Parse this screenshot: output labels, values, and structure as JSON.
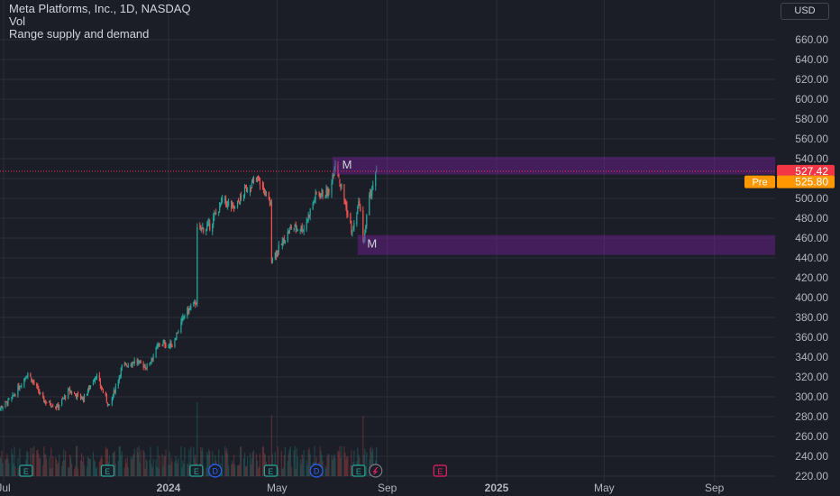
{
  "legend": {
    "symbol": "Meta Platforms, Inc., 1D, NASDAQ",
    "volume": "Vol",
    "indicator": "Range supply and demand"
  },
  "currency_button": "USD",
  "colors": {
    "background": "#1b1e27",
    "grid": "#2a2e39",
    "text": "#b2b5be",
    "up": "#26a69a",
    "down": "#ef5350",
    "zone": "#7b1fa2",
    "last_price_bg": "#f23645",
    "pre_price_bg": "#ff9800"
  },
  "chart_data": {
    "type": "candlestick",
    "y_axis": {
      "min": 220,
      "max": 660,
      "step": 20,
      "ticks": [
        "220.00",
        "240.00",
        "260.00",
        "280.00",
        "300.00",
        "320.00",
        "340.00",
        "360.00",
        "380.00",
        "400.00",
        "420.00",
        "440.00",
        "460.00",
        "480.00",
        "500.00",
        "520.00",
        "540.00",
        "560.00",
        "580.00",
        "600.00",
        "620.00",
        "640.00",
        "660.00"
      ]
    },
    "x_axis": {
      "labels": [
        {
          "text": "Jul",
          "date": "2023-07-01",
          "bold": false
        },
        {
          "text": "2024",
          "date": "2024-01-01",
          "bold": true
        },
        {
          "text": "May",
          "date": "2024-05-01",
          "bold": false
        },
        {
          "text": "Sep",
          "date": "2024-09-01",
          "bold": false
        },
        {
          "text": "2025",
          "date": "2025-01-01",
          "bold": true
        },
        {
          "text": "May",
          "date": "2025-05-01",
          "bold": false
        },
        {
          "text": "Sep",
          "date": "2025-09-01",
          "bold": false
        }
      ]
    },
    "price_path": [
      {
        "date": "2023-06-20",
        "close": 284
      },
      {
        "date": "2023-07-10",
        "close": 298
      },
      {
        "date": "2023-07-28",
        "close": 324
      },
      {
        "date": "2023-08-15",
        "close": 296
      },
      {
        "date": "2023-08-30",
        "close": 290
      },
      {
        "date": "2023-09-12",
        "close": 306
      },
      {
        "date": "2023-09-28",
        "close": 298
      },
      {
        "date": "2023-10-12",
        "close": 322
      },
      {
        "date": "2023-10-27",
        "close": 290
      },
      {
        "date": "2023-11-10",
        "close": 330
      },
      {
        "date": "2023-11-24",
        "close": 336
      },
      {
        "date": "2023-12-08",
        "close": 330
      },
      {
        "date": "2023-12-22",
        "close": 354
      },
      {
        "date": "2024-01-05",
        "close": 352
      },
      {
        "date": "2024-01-19",
        "close": 383
      },
      {
        "date": "2024-02-01",
        "close": 396
      },
      {
        "date": "2024-02-02",
        "close": 468
      },
      {
        "date": "2024-02-16",
        "close": 472
      },
      {
        "date": "2024-03-01",
        "close": 498
      },
      {
        "date": "2024-03-15",
        "close": 490
      },
      {
        "date": "2024-03-28",
        "close": 510
      },
      {
        "date": "2024-04-10",
        "close": 520
      },
      {
        "date": "2024-04-24",
        "close": 493
      },
      {
        "date": "2024-04-25",
        "close": 440
      },
      {
        "date": "2024-05-03",
        "close": 449
      },
      {
        "date": "2024-05-17",
        "close": 471
      },
      {
        "date": "2024-05-31",
        "close": 470
      },
      {
        "date": "2024-06-14",
        "close": 505
      },
      {
        "date": "2024-06-28",
        "close": 505
      },
      {
        "date": "2024-07-05",
        "close": 538
      },
      {
        "date": "2024-07-12",
        "close": 510
      },
      {
        "date": "2024-07-24",
        "close": 465
      },
      {
        "date": "2024-08-01",
        "close": 497
      },
      {
        "date": "2024-08-05",
        "close": 453
      },
      {
        "date": "2024-08-12",
        "close": 500
      },
      {
        "date": "2024-08-20",
        "close": 527
      }
    ],
    "zones": [
      {
        "type": "supply",
        "start": "2024-07-02",
        "top": 542,
        "bottom": 524,
        "label": "M"
      },
      {
        "type": "demand",
        "start": "2024-07-30",
        "top": 463,
        "bottom": 443,
        "label": "M"
      }
    ],
    "last_price": {
      "value": 527.42,
      "label": "527.42"
    },
    "pre_market": {
      "value": 525.8,
      "tag": "Pre",
      "label": "525.80"
    },
    "events": [
      {
        "date": "2023-07-26",
        "type": "E"
      },
      {
        "date": "2023-10-25",
        "type": "E"
      },
      {
        "date": "2024-02-01",
        "type": "E"
      },
      {
        "date": "2024-02-22",
        "type": "D"
      },
      {
        "date": "2024-04-24",
        "type": "E"
      },
      {
        "date": "2024-06-14",
        "type": "D"
      },
      {
        "date": "2024-07-31",
        "type": "E"
      },
      {
        "date": "2024-08-19",
        "type": "split"
      },
      {
        "date": "2024-10-30",
        "type": "E",
        "future": true
      }
    ]
  }
}
